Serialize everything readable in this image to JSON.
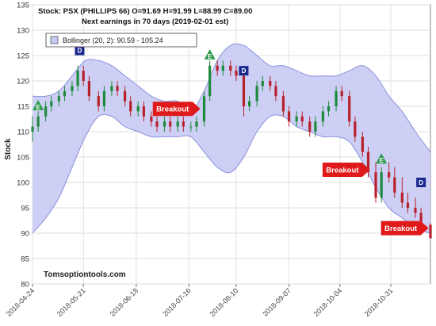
{
  "chart_data": {
    "type": "candlestick",
    "header": {
      "line1": "Stock: PSX (PHILLIPS 66)  O=91.69  H=91.99  L=88.99  C=89.00",
      "line2": "Next earnings in 70 days  (2019-02-01 est)"
    },
    "ylabel": "Stock",
    "ylim": [
      80,
      135
    ],
    "y_ticks": [
      80,
      85,
      90,
      95,
      100,
      105,
      110,
      115,
      120,
      125,
      130,
      135
    ],
    "x_range": [
      "2018-04-24",
      "2018-11-21"
    ],
    "x_ticks": [
      "2018-04-24",
      "2018-05-21",
      "2018-06-18",
      "2018-07-16",
      "2018-08-10",
      "2018-09-07",
      "2018-10-04",
      "2018-10-31"
    ],
    "grid": true,
    "legend": {
      "placement": "top-left",
      "label": "Bollinger (20, 2): 90.59 - 105.24"
    },
    "watermark": "Tomsoptiontools.com",
    "colors": {
      "up": "#1e8a3c",
      "down": "#b8202c",
      "band_fill": "#c4c8f2",
      "band_stroke": "#8a90de",
      "arrow": "#e01a1a",
      "marker_e": "#2e9a4c",
      "marker_d": "#1a2890"
    },
    "bollinger": {
      "x": [
        "2018-04-24",
        "2018-05-01",
        "2018-05-08",
        "2018-05-15",
        "2018-05-22",
        "2018-05-29",
        "2018-06-05",
        "2018-06-12",
        "2018-06-19",
        "2018-06-26",
        "2018-07-03",
        "2018-07-10",
        "2018-07-17",
        "2018-07-24",
        "2018-07-31",
        "2018-08-07",
        "2018-08-14",
        "2018-08-21",
        "2018-08-28",
        "2018-09-04",
        "2018-09-11",
        "2018-09-18",
        "2018-09-25",
        "2018-10-02",
        "2018-10-09",
        "2018-10-16",
        "2018-10-23",
        "2018-10-30",
        "2018-11-06",
        "2018-11-13",
        "2018-11-21"
      ],
      "upper": [
        117,
        117,
        118,
        121,
        124,
        124,
        123,
        121,
        119,
        117,
        116,
        116,
        114,
        118,
        124,
        127,
        127,
        125,
        123,
        123,
        122,
        121,
        121,
        121,
        122,
        123,
        121,
        117,
        114,
        110,
        106
      ],
      "lower": [
        90,
        93,
        97,
        103,
        109,
        113,
        113,
        111,
        110,
        109,
        109,
        109,
        109,
        106,
        103,
        102,
        105,
        110,
        113,
        113,
        111,
        110,
        109,
        109,
        108,
        104,
        99,
        95,
        93,
        91,
        90
      ]
    },
    "candles": [
      {
        "x": "2018-04-24",
        "o": 110,
        "h": 113,
        "l": 108,
        "c": 111
      },
      {
        "x": "2018-04-27",
        "o": 111,
        "h": 114,
        "l": 110,
        "c": 113
      },
      {
        "x": "2018-05-01",
        "o": 113,
        "h": 116,
        "l": 112,
        "c": 115
      },
      {
        "x": "2018-05-04",
        "o": 115,
        "h": 117,
        "l": 114,
        "c": 116
      },
      {
        "x": "2018-05-08",
        "o": 116,
        "h": 118,
        "l": 115,
        "c": 117
      },
      {
        "x": "2018-05-11",
        "o": 117,
        "h": 119,
        "l": 116,
        "c": 118
      },
      {
        "x": "2018-05-15",
        "o": 118,
        "h": 120,
        "l": 117,
        "c": 119
      },
      {
        "x": "2018-05-18",
        "o": 119,
        "h": 123,
        "l": 118,
        "c": 122
      },
      {
        "x": "2018-05-21",
        "o": 122,
        "h": 123,
        "l": 119,
        "c": 120
      },
      {
        "x": "2018-05-24",
        "o": 120,
        "h": 121,
        "l": 116,
        "c": 117
      },
      {
        "x": "2018-05-29",
        "o": 117,
        "h": 118,
        "l": 114,
        "c": 115
      },
      {
        "x": "2018-06-01",
        "o": 115,
        "h": 119,
        "l": 114,
        "c": 118
      },
      {
        "x": "2018-06-05",
        "o": 118,
        "h": 120,
        "l": 117,
        "c": 119
      },
      {
        "x": "2018-06-08",
        "o": 119,
        "h": 120,
        "l": 117,
        "c": 118
      },
      {
        "x": "2018-06-12",
        "o": 118,
        "h": 119,
        "l": 115,
        "c": 116
      },
      {
        "x": "2018-06-15",
        "o": 116,
        "h": 117,
        "l": 113,
        "c": 114
      },
      {
        "x": "2018-06-19",
        "o": 114,
        "h": 116,
        "l": 113,
        "c": 115
      },
      {
        "x": "2018-06-22",
        "o": 115,
        "h": 116,
        "l": 112,
        "c": 113
      },
      {
        "x": "2018-06-26",
        "o": 113,
        "h": 114,
        "l": 111,
        "c": 112
      },
      {
        "x": "2018-06-29",
        "o": 112,
        "h": 113,
        "l": 110,
        "c": 111
      },
      {
        "x": "2018-07-03",
        "o": 111,
        "h": 113,
        "l": 110,
        "c": 112
      },
      {
        "x": "2018-07-06",
        "o": 112,
        "h": 113,
        "l": 110,
        "c": 111
      },
      {
        "x": "2018-07-10",
        "o": 111,
        "h": 113,
        "l": 110,
        "c": 112
      },
      {
        "x": "2018-07-13",
        "o": 112,
        "h": 113,
        "l": 110,
        "c": 111
      },
      {
        "x": "2018-07-17",
        "o": 111,
        "h": 112,
        "l": 110,
        "c": 111
      },
      {
        "x": "2018-07-20",
        "o": 111,
        "h": 113,
        "l": 110,
        "c": 112
      },
      {
        "x": "2018-07-24",
        "o": 112,
        "h": 118,
        "l": 111,
        "c": 117
      },
      {
        "x": "2018-07-27",
        "o": 117,
        "h": 124,
        "l": 116,
        "c": 123
      },
      {
        "x": "2018-07-31",
        "o": 123,
        "h": 124,
        "l": 121,
        "c": 122
      },
      {
        "x": "2018-08-03",
        "o": 122,
        "h": 124,
        "l": 121,
        "c": 123
      },
      {
        "x": "2018-08-07",
        "o": 123,
        "h": 124,
        "l": 121,
        "c": 122
      },
      {
        "x": "2018-08-10",
        "o": 122,
        "h": 123,
        "l": 120,
        "c": 121
      },
      {
        "x": "2018-08-14",
        "o": 121,
        "h": 122,
        "l": 113,
        "c": 115
      },
      {
        "x": "2018-08-17",
        "o": 115,
        "h": 117,
        "l": 114,
        "c": 116
      },
      {
        "x": "2018-08-21",
        "o": 116,
        "h": 120,
        "l": 115,
        "c": 119
      },
      {
        "x": "2018-08-24",
        "o": 119,
        "h": 121,
        "l": 118,
        "c": 120
      },
      {
        "x": "2018-08-28",
        "o": 120,
        "h": 121,
        "l": 118,
        "c": 119
      },
      {
        "x": "2018-08-31",
        "o": 119,
        "h": 120,
        "l": 116,
        "c": 117
      },
      {
        "x": "2018-09-04",
        "o": 117,
        "h": 118,
        "l": 113,
        "c": 114
      },
      {
        "x": "2018-09-07",
        "o": 114,
        "h": 115,
        "l": 111,
        "c": 112
      },
      {
        "x": "2018-09-11",
        "o": 112,
        "h": 114,
        "l": 111,
        "c": 113
      },
      {
        "x": "2018-09-14",
        "o": 113,
        "h": 114,
        "l": 111,
        "c": 112
      },
      {
        "x": "2018-09-18",
        "o": 112,
        "h": 113,
        "l": 109,
        "c": 110
      },
      {
        "x": "2018-09-21",
        "o": 110,
        "h": 113,
        "l": 109,
        "c": 112
      },
      {
        "x": "2018-09-25",
        "o": 112,
        "h": 115,
        "l": 111,
        "c": 114
      },
      {
        "x": "2018-09-28",
        "o": 114,
        "h": 116,
        "l": 113,
        "c": 115
      },
      {
        "x": "2018-10-02",
        "o": 115,
        "h": 119,
        "l": 114,
        "c": 118
      },
      {
        "x": "2018-10-05",
        "o": 118,
        "h": 119,
        "l": 116,
        "c": 117
      },
      {
        "x": "2018-10-09",
        "o": 117,
        "h": 118,
        "l": 111,
        "c": 112
      },
      {
        "x": "2018-10-12",
        "o": 112,
        "h": 113,
        "l": 108,
        "c": 109
      },
      {
        "x": "2018-10-16",
        "o": 109,
        "h": 110,
        "l": 105,
        "c": 106
      },
      {
        "x": "2018-10-19",
        "o": 106,
        "h": 107,
        "l": 101,
        "c": 102
      },
      {
        "x": "2018-10-23",
        "o": 102,
        "h": 104,
        "l": 96,
        "c": 97
      },
      {
        "x": "2018-10-26",
        "o": 97,
        "h": 103,
        "l": 96,
        "c": 102
      },
      {
        "x": "2018-10-30",
        "o": 102,
        "h": 104,
        "l": 100,
        "c": 101
      },
      {
        "x": "2018-11-02",
        "o": 101,
        "h": 103,
        "l": 97,
        "c": 98
      },
      {
        "x": "2018-11-06",
        "o": 98,
        "h": 101,
        "l": 95,
        "c": 96
      },
      {
        "x": "2018-11-09",
        "o": 96,
        "h": 98,
        "l": 94,
        "c": 95
      },
      {
        "x": "2018-11-13",
        "o": 95,
        "h": 97,
        "l": 93,
        "c": 94
      },
      {
        "x": "2018-11-16",
        "o": 94,
        "h": 95,
        "l": 91,
        "c": 92
      },
      {
        "x": "2018-11-21",
        "o": 91.69,
        "h": 91.99,
        "l": 88.99,
        "c": 89.0
      }
    ],
    "markers": [
      {
        "label": "E",
        "x": "2018-04-27",
        "y": 115
      },
      {
        "label": "D",
        "x": "2018-05-19",
        "y": 126
      },
      {
        "label": "E",
        "x": "2018-07-27",
        "y": 125
      },
      {
        "label": "D",
        "x": "2018-08-14",
        "y": 122
      },
      {
        "label": "E",
        "x": "2018-10-26",
        "y": 104.5
      },
      {
        "label": "D",
        "x": "2018-11-16",
        "y": 100
      }
    ],
    "annotations": [
      {
        "text": "Breakout",
        "x": "2018-07-22",
        "y": 114.5
      },
      {
        "text": "Breakout",
        "x": "2018-10-20",
        "y": 102.5
      },
      {
        "text": "Breakout",
        "x": "2018-11-20",
        "y": 91
      }
    ]
  }
}
